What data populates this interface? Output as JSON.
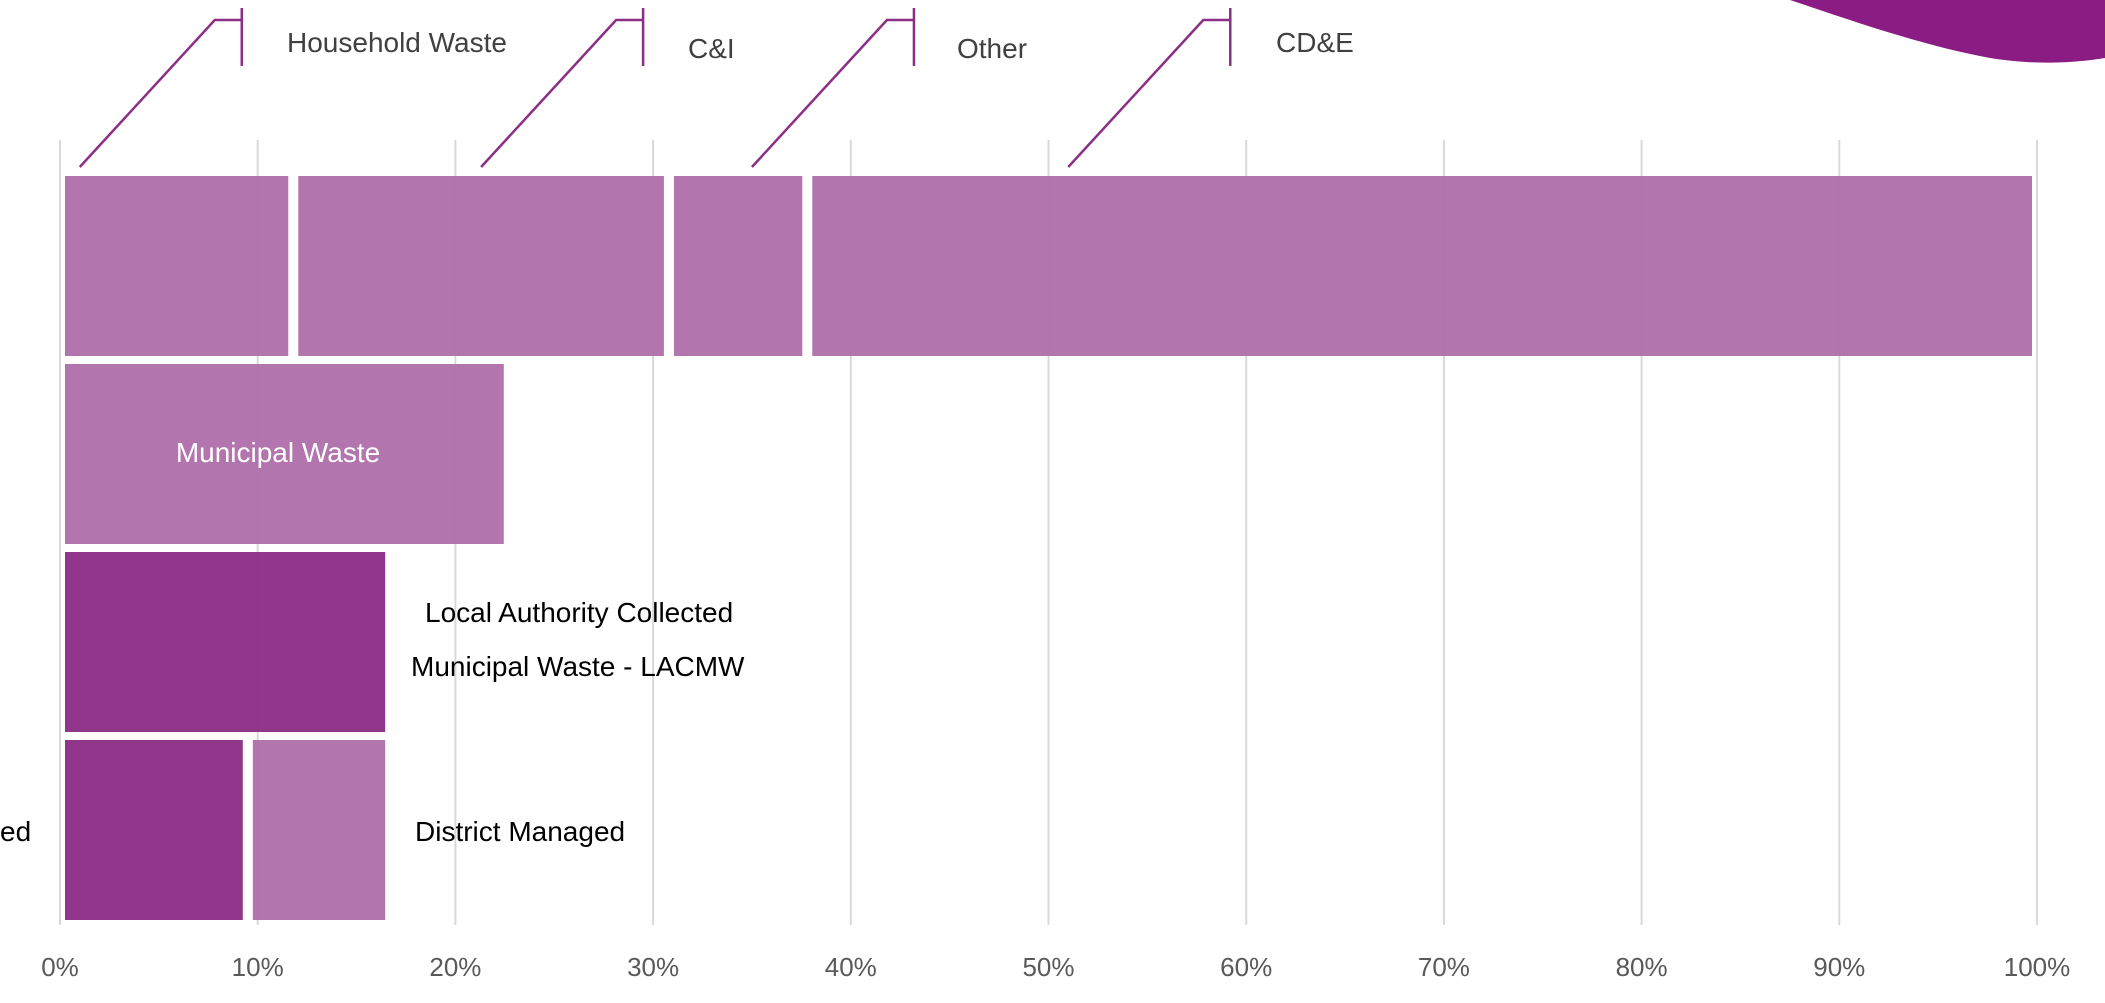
{
  "colors": {
    "light_purple": "#b06fab",
    "dark_purple": "#8b2f86",
    "gridline": "#d9d9d9",
    "callout_line": "#8b2f86",
    "tick_text": "#595959",
    "decor_wave": "#8b1c84"
  },
  "chart_data": {
    "type": "bar",
    "orientation": "horizontal",
    "stacked": true,
    "xlim": [
      0,
      100
    ],
    "x_ticks": [
      "0%",
      "10%",
      "20%",
      "30%",
      "40%",
      "50%",
      "60%",
      "70%",
      "80%",
      "90%",
      "100%"
    ],
    "grid": true,
    "rows": [
      {
        "segments": [
          {
            "label": "Household Waste",
            "start": 0,
            "end": 11.8,
            "color": "light"
          },
          {
            "label": "C&I",
            "start": 11.8,
            "end": 30.8,
            "color": "light"
          },
          {
            "label": "Other",
            "start": 30.8,
            "end": 37.8,
            "color": "light"
          },
          {
            "label": "CD&E",
            "start": 37.8,
            "end": 100,
            "color": "light"
          }
        ]
      },
      {
        "segments": [
          {
            "label": "Municipal Waste",
            "start": 0,
            "end": 22.7,
            "color": "light"
          }
        ]
      },
      {
        "segments": [
          {
            "label": "Local Authority Collected Municipal Waste - LACMW",
            "start": 0,
            "end": 16.7,
            "color": "dark"
          }
        ]
      },
      {
        "segments": [
          {
            "label": "",
            "start": 0,
            "end": 9.5,
            "color": "dark"
          },
          {
            "label": "District Managed",
            "start": 9.5,
            "end": 16.7,
            "color": "light"
          }
        ]
      }
    ],
    "callouts": [
      {
        "text": "Household Waste",
        "x": 1.0
      },
      {
        "text": "C&I",
        "x": 21.3
      },
      {
        "text": "Other",
        "x": 35.0
      },
      {
        "text": "CD&E",
        "x": 51.0
      }
    ],
    "in_bar_label": "Municipal Waste",
    "side_labels": {
      "lacmw_line1": "Local Authority Collected",
      "lacmw_line2": "Municipal Waste - LACMW",
      "district": "District Managed",
      "cut_off_left": "ed"
    }
  }
}
